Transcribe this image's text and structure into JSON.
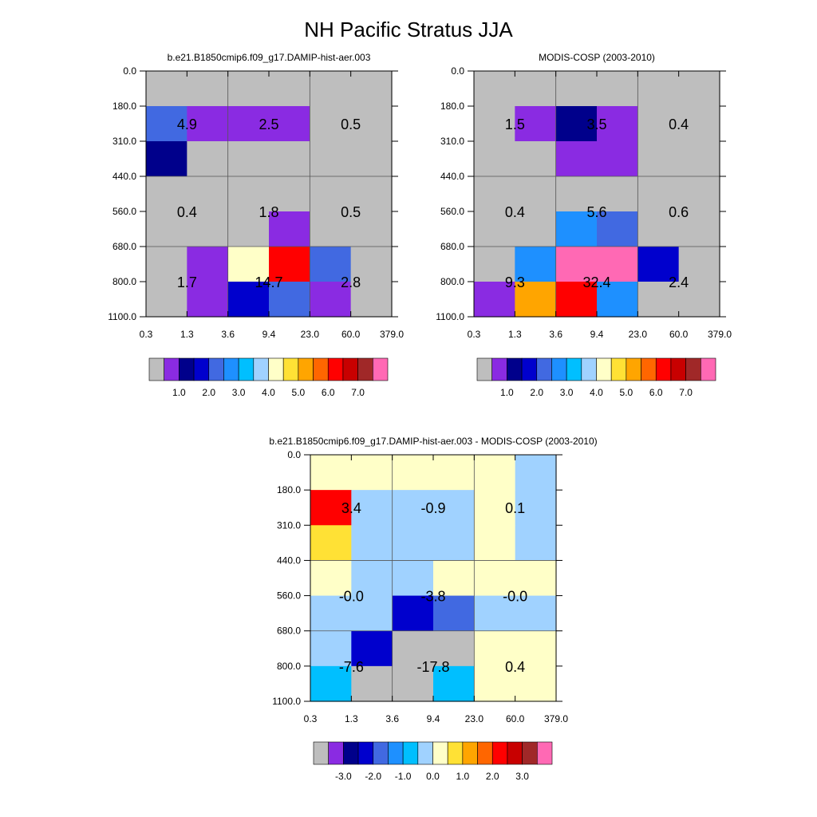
{
  "title": "NH Pacific Stratus JJA",
  "colors": {
    "missing": "#bebebe",
    "palette": [
      "#bebebe",
      "#8a2be2",
      "#00008b",
      "#0000cd",
      "#4169e1",
      "#1e90ff",
      "#00bfff",
      "#a0d2ff",
      "#ffffc8",
      "#ffe135",
      "#ffa500",
      "#ff6600",
      "#ff0000",
      "#c80000",
      "#a02828",
      "#ff69b4"
    ]
  },
  "chart_data": [
    {
      "type": "heatmap",
      "title": "b.e21.B1850cmip6.f09_g17.DAMIP-hist-aer.003",
      "x_ticks": [
        "0.3",
        "1.3",
        "3.6",
        "9.4",
        "23.0",
        "60.0",
        "379.0"
      ],
      "y_ticks": [
        "0.0",
        "180.0",
        "310.0",
        "440.0",
        "560.0",
        "680.0",
        "800.0",
        "1100.0"
      ],
      "cells_color_index_rows_top_to_bottom": [
        [
          0,
          0,
          0,
          0,
          0,
          0
        ],
        [
          4,
          1,
          1,
          1,
          0,
          0
        ],
        [
          2,
          0,
          0,
          0,
          0,
          0
        ],
        [
          0,
          0,
          0,
          0,
          0,
          0
        ],
        [
          0,
          0,
          0,
          1,
          0,
          0
        ],
        [
          0,
          1,
          8,
          12,
          4,
          0
        ],
        [
          0,
          1,
          3,
          4,
          1,
          0
        ]
      ],
      "labels": [
        {
          "row": 0,
          "col": 0,
          "text": "4.9"
        },
        {
          "row": 0,
          "col": 1,
          "text": "2.5"
        },
        {
          "row": 0,
          "col": 2,
          "text": "0.5"
        },
        {
          "row": 1,
          "col": 0,
          "text": "0.4"
        },
        {
          "row": 1,
          "col": 1,
          "text": "1.8"
        },
        {
          "row": 1,
          "col": 2,
          "text": "0.5"
        },
        {
          "row": 2,
          "col": 0,
          "text": "1.7"
        },
        {
          "row": 2,
          "col": 1,
          "text": "14.7"
        },
        {
          "row": 2,
          "col": 2,
          "text": "2.8"
        }
      ],
      "colorbar_labels": [
        "1.0",
        "2.0",
        "3.0",
        "4.0",
        "5.0",
        "6.0",
        "7.0"
      ]
    },
    {
      "type": "heatmap",
      "title": "MODIS-COSP (2003-2010)",
      "x_ticks": [
        "0.3",
        "1.3",
        "3.6",
        "9.4",
        "23.0",
        "60.0",
        "379.0"
      ],
      "y_ticks": [
        "0.0",
        "180.0",
        "310.0",
        "440.0",
        "560.0",
        "680.0",
        "800.0",
        "1100.0"
      ],
      "cells_color_index_rows_top_to_bottom": [
        [
          0,
          0,
          0,
          0,
          0,
          0
        ],
        [
          0,
          1,
          2,
          1,
          0,
          0
        ],
        [
          0,
          0,
          1,
          1,
          0,
          0
        ],
        [
          0,
          0,
          0,
          0,
          0,
          0
        ],
        [
          0,
          0,
          5,
          4,
          0,
          0
        ],
        [
          0,
          5,
          15,
          15,
          3,
          0
        ],
        [
          1,
          10,
          12,
          5,
          0,
          0
        ]
      ],
      "labels": [
        {
          "row": 0,
          "col": 0,
          "text": "1.5"
        },
        {
          "row": 0,
          "col": 1,
          "text": "3.5"
        },
        {
          "row": 0,
          "col": 2,
          "text": "0.4"
        },
        {
          "row": 1,
          "col": 0,
          "text": "0.4"
        },
        {
          "row": 1,
          "col": 1,
          "text": "5.6"
        },
        {
          "row": 1,
          "col": 2,
          "text": "0.6"
        },
        {
          "row": 2,
          "col": 0,
          "text": "9.3"
        },
        {
          "row": 2,
          "col": 1,
          "text": "32.4"
        },
        {
          "row": 2,
          "col": 2,
          "text": "2.4"
        }
      ],
      "colorbar_labels": [
        "1.0",
        "2.0",
        "3.0",
        "4.0",
        "5.0",
        "6.0",
        "7.0"
      ]
    },
    {
      "type": "heatmap",
      "title": "b.e21.B1850cmip6.f09_g17.DAMIP-hist-aer.003 - MODIS-COSP (2003-2010)",
      "x_ticks": [
        "0.3",
        "1.3",
        "3.6",
        "9.4",
        "23.0",
        "60.0",
        "379.0"
      ],
      "y_ticks": [
        "0.0",
        "180.0",
        "310.0",
        "440.0",
        "560.0",
        "680.0",
        "800.0",
        "1100.0"
      ],
      "cells_color_index_rows_top_to_bottom": [
        [
          8,
          8,
          8,
          8,
          8,
          7
        ],
        [
          12,
          7,
          7,
          7,
          8,
          7
        ],
        [
          9,
          7,
          7,
          7,
          8,
          7
        ],
        [
          8,
          7,
          7,
          8,
          8,
          8
        ],
        [
          7,
          7,
          3,
          4,
          7,
          7
        ],
        [
          7,
          3,
          0,
          0,
          8,
          8
        ],
        [
          6,
          0,
          0,
          6,
          8,
          8
        ]
      ],
      "labels": [
        {
          "row": 0,
          "col": 0,
          "text": "3.4"
        },
        {
          "row": 0,
          "col": 1,
          "text": "-0.9"
        },
        {
          "row": 0,
          "col": 2,
          "text": "0.1"
        },
        {
          "row": 1,
          "col": 0,
          "text": "-0.0"
        },
        {
          "row": 1,
          "col": 1,
          "text": "-3.8"
        },
        {
          "row": 1,
          "col": 2,
          "text": "-0.0"
        },
        {
          "row": 2,
          "col": 0,
          "text": "-7.6"
        },
        {
          "row": 2,
          "col": 1,
          "text": "-17.8"
        },
        {
          "row": 2,
          "col": 2,
          "text": "0.4"
        }
      ],
      "colorbar_labels": [
        "-3.0",
        "-2.0",
        "-1.0",
        "0.0",
        "1.0",
        "2.0",
        "3.0"
      ]
    }
  ]
}
